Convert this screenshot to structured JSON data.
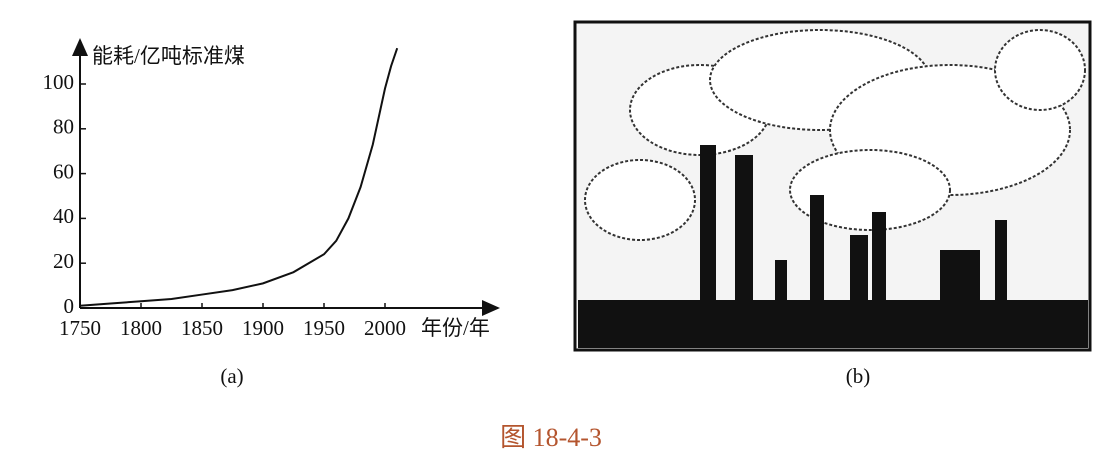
{
  "chart_data": {
    "type": "line",
    "y_label": "能耗/亿吨标准煤",
    "x_label": "年份/年",
    "x": [
      1750,
      1775,
      1800,
      1825,
      1850,
      1875,
      1900,
      1925,
      1950,
      1960,
      1970,
      1980,
      1990,
      2000,
      2005,
      2010
    ],
    "values": [
      1,
      2,
      3,
      4,
      6,
      8,
      11,
      16,
      24,
      30,
      40,
      54,
      73,
      98,
      108,
      116
    ],
    "color": "#111111",
    "xlim": [
      1750,
      2090
    ],
    "ylim": [
      0,
      120
    ],
    "xticks": [
      1750,
      1800,
      1850,
      1900,
      1950,
      2000
    ],
    "yticks": [
      0,
      20,
      40,
      60,
      80,
      100
    ]
  },
  "panels": [
    {
      "label": "(a)"
    },
    {
      "label": "(b)"
    }
  ],
  "caption": "图 18-4-3"
}
